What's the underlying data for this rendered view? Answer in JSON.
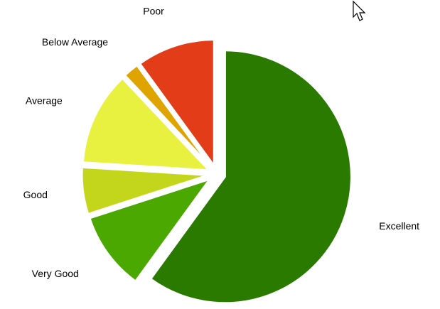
{
  "chart_data": {
    "type": "pie",
    "categories": [
      "Excellent",
      "Very Good",
      "Good",
      "Average",
      "Below Average",
      "Poor"
    ],
    "values": [
      60,
      10,
      6,
      12,
      2,
      10
    ],
    "colors": [
      "#2a7a00",
      "#4aa800",
      "#c4d61c",
      "#e8f040",
      "#e0a400",
      "#e23c18"
    ]
  }
}
